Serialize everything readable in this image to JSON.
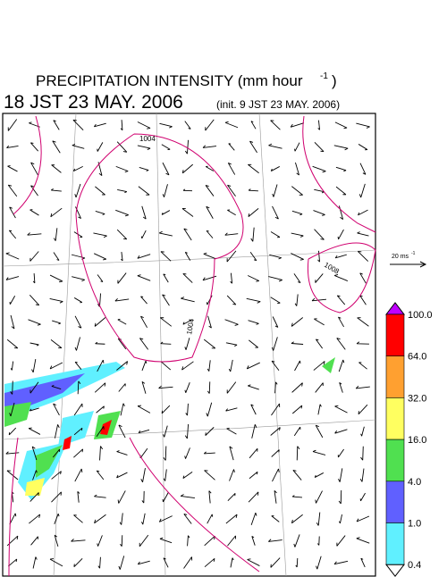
{
  "header": {
    "title": "PRECIPITATION INTENSITY (mm hour",
    "title_exponent": "-1",
    "title_close": ")",
    "valid_time": "18 JST 23 MAY. 2006",
    "init_time": "(init. 9 JST 23 MAY. 2006)"
  },
  "wind_scale": {
    "label": "20 ms",
    "exponent": "-1"
  },
  "contours": [
    {
      "label": "1004"
    },
    {
      "label": "1004"
    },
    {
      "label": "1008"
    }
  ],
  "colorbar": {
    "levels": [
      {
        "label": "100.0",
        "color": "#ff0000"
      },
      {
        "label": "64.0",
        "color": "#ffa030"
      },
      {
        "label": "32.0",
        "color": "#ffff60"
      },
      {
        "label": "16.0",
        "color": "#50e050"
      },
      {
        "label": "4.0",
        "color": "#6060ff"
      },
      {
        "label": "1.0",
        "color": "#60f0ff"
      },
      {
        "label": "0.4",
        "color": "#ffffff"
      }
    ],
    "over_color": "#c000ff"
  }
}
